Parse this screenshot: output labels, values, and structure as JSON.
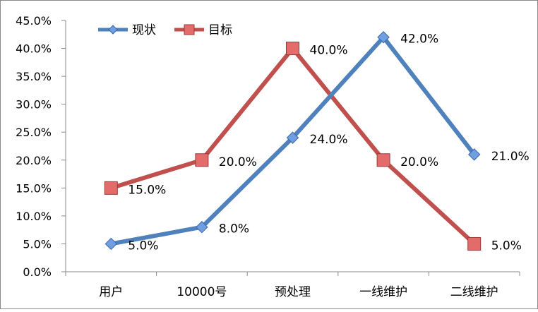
{
  "chart_data": {
    "type": "line",
    "title": "",
    "xlabel": "",
    "ylabel": "",
    "categories": [
      "用户",
      "10000号",
      "预处理",
      "一线维护",
      "二线维护"
    ],
    "ylim": [
      0,
      45
    ],
    "ytick_step": 5,
    "yticks": [
      "0.0%",
      "5.0%",
      "10.0%",
      "15.0%",
      "20.0%",
      "25.0%",
      "30.0%",
      "35.0%",
      "40.0%",
      "45.0%"
    ],
    "grid": false,
    "legend": "top-left",
    "series": [
      {
        "name": "现状",
        "values": [
          5.0,
          8.0,
          24.0,
          42.0,
          21.0
        ],
        "labels": [
          "5.0%",
          "8.0%",
          "24.0%",
          "42.0%",
          "21.0%"
        ],
        "color": "#4f81bd",
        "marker": "diamond",
        "marker_fill": "#6f9fe0"
      },
      {
        "name": "目标",
        "values": [
          15.0,
          20.0,
          40.0,
          20.0,
          5.0
        ],
        "labels": [
          "15.0%",
          "20.0%",
          "40.0%",
          "20.0%",
          "5.0%"
        ],
        "color": "#c0504d",
        "marker": "square",
        "marker_fill": "#e36c6a"
      }
    ]
  }
}
